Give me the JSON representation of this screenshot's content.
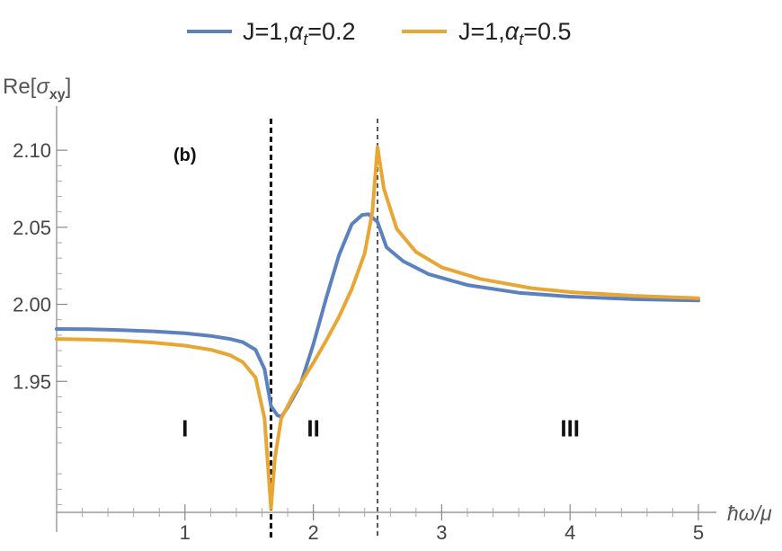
{
  "chart_data": {
    "type": "line",
    "xlabel_html": {
      "hbar": "ħ",
      "omega": "ω",
      "rest": "/μ"
    },
    "ylabel": {
      "prefix": "Re[",
      "sigma": "σ",
      "sub": "xy",
      "suffix": "]"
    },
    "xlim": [
      0,
      5
    ],
    "ylim": [
      1.865,
      2.11
    ],
    "x_origin": 0,
    "y_axis_at": 0,
    "x_ticks": [
      1,
      2,
      3,
      4,
      5
    ],
    "y_ticks": [
      1.95,
      2.0,
      2.05,
      2.1
    ],
    "x_tick_labels": [
      "1",
      "2",
      "3",
      "4",
      "5"
    ],
    "y_tick_labels": [
      "1.95",
      "2.00",
      "2.05",
      "2.10"
    ],
    "legend": {
      "placement": "top-center",
      "entries": [
        {
          "label": "J=1,",
          "alpha": "α",
          "sub": "t",
          "value": "=0.2"
        },
        {
          "label": "J=1,",
          "alpha": "α",
          "sub": "t",
          "value": "=0.5"
        }
      ]
    },
    "vlines": [
      {
        "x": 1.67,
        "style": "dashed-thick"
      },
      {
        "x": 2.5,
        "style": "dashed-thin"
      }
    ],
    "annotations": [
      {
        "text": "(b)",
        "x": 1.0,
        "y": 2.1
      },
      {
        "text": "I",
        "x": 1.0,
        "y": 1.92
      },
      {
        "text": "II",
        "x": 2.0,
        "y": 1.92
      },
      {
        "text": "III",
        "x": 4.0,
        "y": 1.92
      }
    ],
    "series": [
      {
        "color": "#5b82bf",
        "points": [
          [
            0,
            1.984
          ],
          [
            0.25,
            1.9838
          ],
          [
            0.5,
            1.9833
          ],
          [
            0.75,
            1.9825
          ],
          [
            1.0,
            1.9812
          ],
          [
            1.2,
            1.9795
          ],
          [
            1.35,
            1.9775
          ],
          [
            1.45,
            1.9755
          ],
          [
            1.55,
            1.9705
          ],
          [
            1.62,
            1.958
          ],
          [
            1.67,
            1.934
          ],
          [
            1.72,
            1.928
          ],
          [
            1.75,
            1.927
          ],
          [
            1.8,
            1.933
          ],
          [
            1.9,
            1.948
          ],
          [
            2.0,
            1.974
          ],
          [
            2.1,
            2.004
          ],
          [
            2.2,
            2.032
          ],
          [
            2.3,
            2.052
          ],
          [
            2.38,
            2.058
          ],
          [
            2.43,
            2.0585
          ],
          [
            2.5,
            2.0535
          ],
          [
            2.57,
            2.037
          ],
          [
            2.7,
            2.028
          ],
          [
            2.9,
            2.0195
          ],
          [
            3.2,
            2.0125
          ],
          [
            3.6,
            2.0075
          ],
          [
            4.0,
            2.005
          ],
          [
            4.5,
            2.0033
          ],
          [
            5.0,
            2.0025
          ]
        ]
      },
      {
        "color": "#e8a634",
        "points": [
          [
            0,
            1.9775
          ],
          [
            0.25,
            1.9772
          ],
          [
            0.5,
            1.9765
          ],
          [
            0.75,
            1.9752
          ],
          [
            1.0,
            1.9732
          ],
          [
            1.2,
            1.9705
          ],
          [
            1.35,
            1.967
          ],
          [
            1.45,
            1.9625
          ],
          [
            1.55,
            1.9525
          ],
          [
            1.62,
            1.926
          ],
          [
            1.67,
            1.8675
          ],
          [
            1.7,
            1.9
          ],
          [
            1.75,
            1.926
          ],
          [
            1.85,
            1.942
          ],
          [
            2.0,
            1.962
          ],
          [
            2.1,
            1.9765
          ],
          [
            2.2,
            1.992
          ],
          [
            2.3,
            2.01
          ],
          [
            2.4,
            2.033
          ],
          [
            2.46,
            2.06
          ],
          [
            2.5,
            2.102
          ],
          [
            2.55,
            2.075
          ],
          [
            2.65,
            2.049
          ],
          [
            2.8,
            2.034
          ],
          [
            3.0,
            2.024
          ],
          [
            3.3,
            2.0165
          ],
          [
            3.7,
            2.0105
          ],
          [
            4.0,
            2.008
          ],
          [
            4.5,
            2.0055
          ],
          [
            5.0,
            2.004
          ]
        ]
      }
    ]
  }
}
